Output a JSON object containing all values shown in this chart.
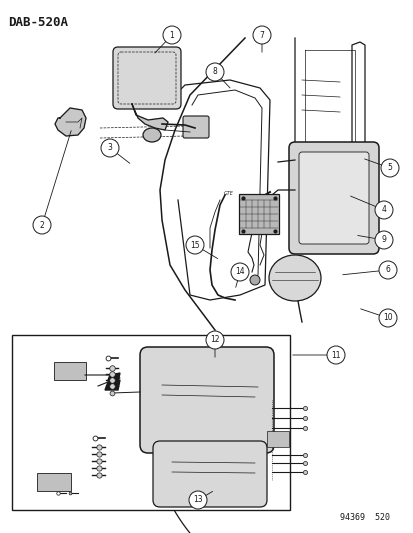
{
  "title": "DAB-520A",
  "footer": "94369  520",
  "bg": "#ffffff",
  "lc": "#1a1a1a",
  "fig_w": 4.14,
  "fig_h": 5.33,
  "dpi": 100
}
